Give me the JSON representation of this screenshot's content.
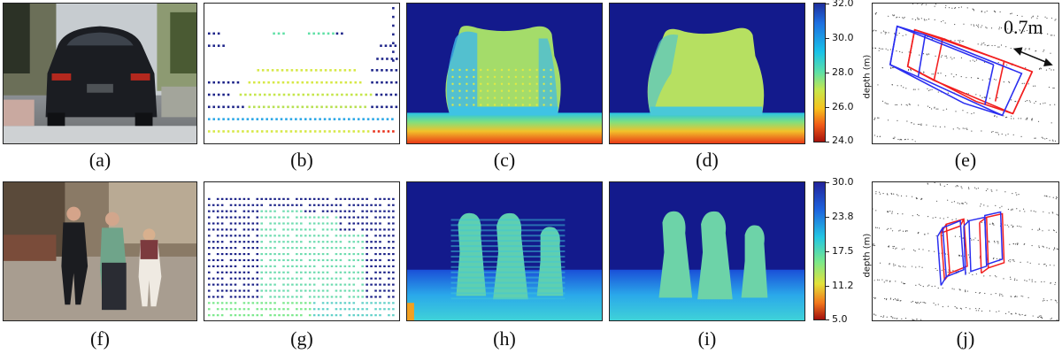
{
  "captions": [
    "(a)",
    "(b)",
    "(c)",
    "(d)",
    "(e)",
    "(f)",
    "(g)",
    "(h)",
    "(i)",
    "(j)"
  ],
  "colorbar_top": {
    "ticks": [
      "32.0",
      "30.0",
      "28.0",
      "26.0",
      "24.0"
    ],
    "label": "depth (m)"
  },
  "colorbar_bottom": {
    "ticks": [
      "30.0",
      "23.8",
      "17.5",
      "11.2",
      "5.0"
    ],
    "label": "depth (m)"
  },
  "annotation": "0.7m",
  "colors": {
    "deep_blue": "#131a8c",
    "sky_cyan": "#33b9e9",
    "object_green": "#b2e063",
    "box_red": "#f21f1f",
    "box_blue": "#2a2ef0"
  }
}
